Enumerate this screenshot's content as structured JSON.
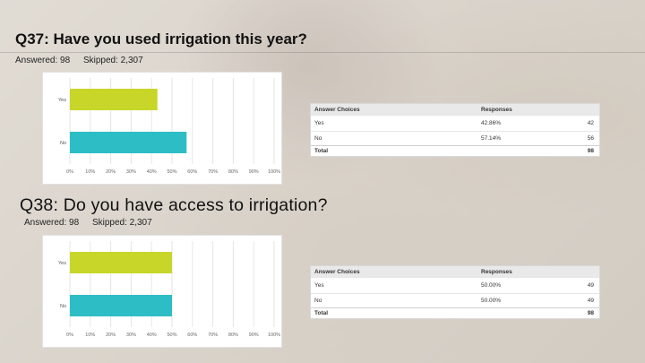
{
  "slide": {
    "q37": {
      "title": "Q37: Have you used irrigation this year?",
      "answered": "Answered: 98",
      "skipped": "Skipped: 2,307",
      "table": {
        "headers": [
          "Answer Choices",
          "Responses",
          ""
        ],
        "rows": [
          {
            "choice": "Yes",
            "pct": "42.86%",
            "count": "42"
          },
          {
            "choice": "No",
            "pct": "57.14%",
            "count": "56"
          }
        ],
        "total_label": "Total",
        "total_count": "98"
      }
    },
    "q38": {
      "title": "Q38: Do you have access to irrigation?",
      "answered": "Answered: 98",
      "skipped": "Skipped: 2,307",
      "table": {
        "headers": [
          "Answer Choices",
          "Responses",
          ""
        ],
        "rows": [
          {
            "choice": "Yes",
            "pct": "50.00%",
            "count": "49"
          },
          {
            "choice": "No",
            "pct": "50.00%",
            "count": "49"
          }
        ],
        "total_label": "Total",
        "total_count": "98"
      }
    }
  },
  "colors": {
    "yes_bar": "#c8d62a",
    "no_bar": "#2dbdc4",
    "grid": "#e6e6e6"
  },
  "chart_data": [
    {
      "type": "bar",
      "orientation": "horizontal",
      "categories": [
        "Yes",
        "No"
      ],
      "values": [
        42.86,
        57.14
      ],
      "xlim": [
        0,
        100
      ],
      "ticks": [
        "0%",
        "10%",
        "20%",
        "30%",
        "40%",
        "50%",
        "60%",
        "70%",
        "80%",
        "90%",
        "100%"
      ],
      "grid": true
    },
    {
      "type": "bar",
      "orientation": "horizontal",
      "categories": [
        "Yes",
        "No"
      ],
      "values": [
        50.0,
        50.0
      ],
      "xlim": [
        0,
        100
      ],
      "ticks": [
        "0%",
        "10%",
        "20%",
        "30%",
        "40%",
        "50%",
        "60%",
        "70%",
        "80%",
        "90%",
        "100%"
      ],
      "grid": true
    }
  ]
}
